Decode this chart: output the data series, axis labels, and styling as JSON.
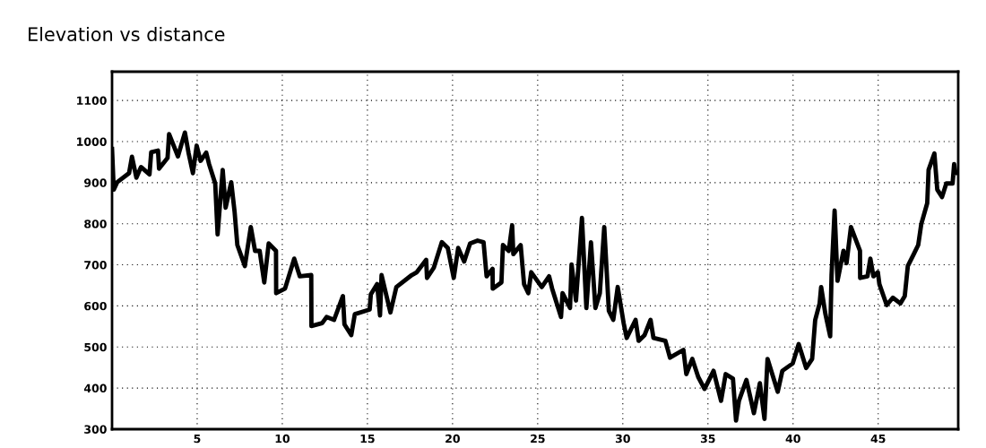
{
  "chart_data": {
    "type": "line",
    "title": "Elevation vs distance",
    "x": [
      0.0,
      0.1,
      0.3,
      1.0,
      1.17,
      1.43,
      1.7,
      2.2,
      2.3,
      2.7,
      2.76,
      3.26,
      3.35,
      3.87,
      4.28,
      4.5,
      4.75,
      4.97,
      5.2,
      5.53,
      5.7,
      6.06,
      6.2,
      6.5,
      6.67,
      7.0,
      7.2,
      7.36,
      7.8,
      8.15,
      8.4,
      8.67,
      8.94,
      9.2,
      9.63,
      9.64,
      10.16,
      10.7,
      11.03,
      11.7,
      11.71,
      12.34,
      12.6,
      13.04,
      13.56,
      13.65,
      14.05,
      14.26,
      15.13,
      15.2,
      15.57,
      15.74,
      15.83,
      16.35,
      16.7,
      17.6,
      17.9,
      18.45,
      18.5,
      18.9,
      19.37,
      19.72,
      20.07,
      20.33,
      20.68,
      21.03,
      21.47,
      21.82,
      22.0,
      22.35,
      22.36,
      22.87,
      22.96,
      23.3,
      23.5,
      23.57,
      24.0,
      24.2,
      24.45,
      24.62,
      25.24,
      25.67,
      25.85,
      26.37,
      26.46,
      26.9,
      26.99,
      27.25,
      27.6,
      27.86,
      28.13,
      28.39,
      28.65,
      28.91,
      29.18,
      29.44,
      29.7,
      30.05,
      30.23,
      30.75,
      30.93,
      31.28,
      31.63,
      31.8,
      32.5,
      32.77,
      33.56,
      33.73,
      34.08,
      34.43,
      34.8,
      35.33,
      35.77,
      36.04,
      36.47,
      36.65,
      36.82,
      37.26,
      37.7,
      38.05,
      38.32,
      38.5,
      39.1,
      39.37,
      39.98,
      40.33,
      40.77,
      41.12,
      41.3,
      41.56,
      41.65,
      41.9,
      42.18,
      42.26,
      42.44,
      42.61,
      42.96,
      43.14,
      43.4,
      43.93,
      43.94,
      44.37,
      44.54,
      44.72,
      44.98,
      45.07,
      45.5,
      45.86,
      46.3,
      46.56,
      46.74,
      47.09,
      47.35,
      47.53,
      47.88,
      47.96,
      48.3,
      48.47,
      48.75,
      49.0,
      49.37,
      49.46,
      49.54
    ],
    "series": [
      {
        "color": "#000000",
        "values": [
          982,
          883,
          901,
          923,
          963,
          912,
          938,
          920,
          974,
          978,
          934,
          960,
          1018,
          964,
          1022,
          971,
          923,
          990,
          953,
          973,
          945,
          898,
          774,
          931,
          839,
          901,
          828,
          748,
          697,
          792,
          734,
          734,
          657,
          752,
          734,
          631,
          642,
          715,
          672,
          675,
          551,
          558,
          573,
          566,
          624,
          555,
          529,
          580,
          591,
          628,
          653,
          577,
          675,
          584,
          646,
          675,
          682,
          712,
          668,
          693,
          755,
          741,
          668,
          741,
          708,
          752,
          759,
          755,
          672,
          690,
          642,
          657,
          748,
          734,
          796,
          726,
          748,
          653,
          631,
          682,
          646,
          672,
          642,
          573,
          631,
          595,
          701,
          613,
          814,
          595,
          755,
          595,
          631,
          792,
          588,
          566,
          646,
          558,
          522,
          566,
          515,
          529,
          566,
          522,
          515,
          474,
          493,
          434,
          471,
          427,
          398,
          442,
          369,
          434,
          423,
          321,
          369,
          420,
          339,
          412,
          325,
          471,
          391,
          442,
          460,
          507,
          449,
          471,
          566,
          606,
          646,
          580,
          526,
          675,
          832,
          661,
          734,
          704,
          792,
          734,
          668,
          672,
          715,
          672,
          682,
          653,
          602,
          620,
          606,
          624,
          697,
          726,
          748,
          799,
          850,
          931,
          971,
          883,
          865,
          898,
          898,
          945,
          923
        ]
      }
    ],
    "xlim": [
      0,
      49.7
    ],
    "ylim": [
      300,
      1170
    ],
    "xticks": [
      5,
      10,
      15,
      20,
      25,
      30,
      35,
      40,
      45
    ],
    "yticks": [
      300,
      400,
      500,
      600,
      700,
      800,
      900,
      1000,
      1100
    ],
    "grid": true,
    "line_style": "solid",
    "marker": "none"
  }
}
